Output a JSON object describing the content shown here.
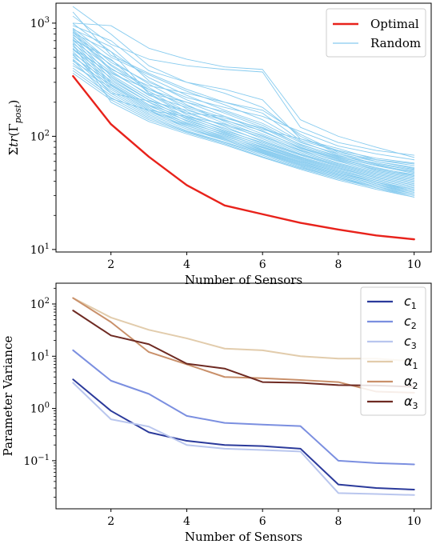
{
  "chart_data": [
    {
      "type": "line",
      "ylabel_parts": [
        "Σ",
        "tr",
        "(Γ",
        "post",
        ")"
      ],
      "xlabel": "Number of Sensors",
      "x": [
        1,
        2,
        3,
        4,
        5,
        6,
        7,
        8,
        9,
        10
      ],
      "yscale": "log",
      "ylim": [
        9.5,
        1500
      ],
      "xlim": [
        0.55,
        10.45
      ],
      "xticks": [
        "2",
        "4",
        "6",
        "8",
        "10"
      ],
      "yticks": [
        {
          "base": "10",
          "exp": "1",
          "value": 10
        },
        {
          "base": "10",
          "exp": "2",
          "value": 100
        },
        {
          "base": "10",
          "exp": "3",
          "value": 1000
        }
      ],
      "legend": {
        "position": "upper right",
        "entries": [
          {
            "label": "Optimal",
            "color": "#e8221b"
          },
          {
            "label": "Random",
            "color": "#87cbef"
          }
        ]
      },
      "series": [
        {
          "name": "Optimal",
          "color": "#e8221b",
          "values": [
            340,
            128,
            66,
            37,
            24.5,
            20.5,
            17.2,
            15,
            13.3,
            12.3
          ]
        },
        {
          "name": "Random",
          "color": "#87cbef",
          "values": [
            1400,
            800,
            420,
            300,
            260,
            210,
            95,
            78,
            62,
            55
          ]
        },
        {
          "name": "Random",
          "color": "#87cbef",
          "values": [
            1150,
            650,
            480,
            420,
            390,
            370,
            120,
            88,
            75,
            68
          ]
        },
        {
          "name": "Random",
          "color": "#87cbef",
          "values": [
            1000,
            950,
            600,
            480,
            410,
            390,
            140,
            100,
            80,
            65
          ]
        },
        {
          "name": "Random",
          "color": "#87cbef",
          "values": [
            950,
            700,
            380,
            300,
            240,
            180,
            100,
            70,
            60,
            52
          ]
        },
        {
          "name": "Random",
          "color": "#87cbef",
          "values": [
            900,
            500,
            350,
            250,
            190,
            140,
            90,
            68,
            56,
            48
          ]
        },
        {
          "name": "Random",
          "color": "#87cbef",
          "values": [
            880,
            620,
            310,
            210,
            160,
            120,
            85,
            66,
            55,
            47
          ]
        },
        {
          "name": "Random",
          "color": "#87cbef",
          "values": [
            850,
            420,
            260,
            200,
            150,
            110,
            80,
            64,
            53,
            45
          ]
        },
        {
          "name": "Random",
          "color": "#87cbef",
          "values": [
            820,
            560,
            330,
            230,
            170,
            130,
            88,
            70,
            57,
            50
          ]
        },
        {
          "name": "Random",
          "color": "#87cbef",
          "values": [
            800,
            380,
            230,
            180,
            140,
            105,
            78,
            62,
            50,
            44
          ]
        },
        {
          "name": "Random",
          "color": "#87cbef",
          "values": [
            780,
            470,
            290,
            190,
            135,
            100,
            76,
            60,
            49,
            43
          ]
        },
        {
          "name": "Random",
          "color": "#87cbef",
          "values": [
            760,
            340,
            210,
            160,
            125,
            98,
            74,
            58,
            48,
            42
          ]
        },
        {
          "name": "Random",
          "color": "#87cbef",
          "values": [
            740,
            430,
            270,
            175,
            130,
            95,
            72,
            57,
            47,
            41
          ]
        },
        {
          "name": "Random",
          "color": "#87cbef",
          "values": [
            720,
            320,
            200,
            150,
            118,
            92,
            70,
            56,
            46,
            40
          ]
        },
        {
          "name": "Random",
          "color": "#87cbef",
          "values": [
            700,
            400,
            250,
            165,
            122,
            90,
            69,
            55,
            45,
            39
          ]
        },
        {
          "name": "Random",
          "color": "#87cbef",
          "values": [
            680,
            300,
            190,
            145,
            112,
            88,
            68,
            54,
            44,
            38
          ]
        },
        {
          "name": "Random",
          "color": "#87cbef",
          "values": [
            660,
            370,
            235,
            155,
            115,
            86,
            66,
            53,
            43,
            37
          ]
        },
        {
          "name": "Random",
          "color": "#87cbef",
          "values": [
            640,
            290,
            185,
            138,
            108,
            84,
            65,
            52,
            43,
            37
          ]
        },
        {
          "name": "Random",
          "color": "#87cbef",
          "values": [
            620,
            350,
            220,
            148,
            110,
            83,
            64,
            51,
            42,
            36
          ]
        },
        {
          "name": "Random",
          "color": "#87cbef",
          "values": [
            600,
            280,
            175,
            132,
            104,
            81,
            63,
            50,
            41,
            35
          ]
        },
        {
          "name": "Random",
          "color": "#87cbef",
          "values": [
            580,
            330,
            210,
            142,
            106,
            80,
            62,
            49,
            41,
            35
          ]
        },
        {
          "name": "Random",
          "color": "#87cbef",
          "values": [
            560,
            270,
            170,
            128,
            100,
            79,
            61,
            48,
            40,
            34
          ]
        },
        {
          "name": "Random",
          "color": "#87cbef",
          "values": [
            540,
            310,
            200,
            136,
            102,
            77,
            60,
            48,
            39,
            34
          ]
        },
        {
          "name": "Random",
          "color": "#87cbef",
          "values": [
            520,
            260,
            165,
            124,
            97,
            76,
            59,
            47,
            39,
            33
          ]
        },
        {
          "name": "Random",
          "color": "#87cbef",
          "values": [
            500,
            300,
            190,
            130,
            98,
            75,
            58,
            46,
            38,
            33
          ]
        },
        {
          "name": "Random",
          "color": "#87cbef",
          "values": [
            480,
            250,
            160,
            120,
            94,
            74,
            57,
            46,
            38,
            32
          ]
        },
        {
          "name": "Random",
          "color": "#87cbef",
          "values": [
            460,
            285,
            180,
            125,
            95,
            73,
            56,
            45,
            37,
            32
          ]
        },
        {
          "name": "Random",
          "color": "#87cbef",
          "values": [
            440,
            240,
            155,
            116,
            92,
            72,
            56,
            45,
            37,
            31
          ]
        },
        {
          "name": "Random",
          "color": "#87cbef",
          "values": [
            420,
            270,
            170,
            120,
            92,
            71,
            55,
            44,
            36,
            31
          ]
        },
        {
          "name": "Random",
          "color": "#87cbef",
          "values": [
            400,
            230,
            150,
            112,
            89,
            70,
            54,
            43,
            36,
            30
          ]
        },
        {
          "name": "Random",
          "color": "#87cbef",
          "values": [
            380,
            220,
            145,
            110,
            88,
            68,
            53,
            43,
            35,
            30
          ]
        },
        {
          "name": "Random",
          "color": "#87cbef",
          "values": [
            360,
            210,
            140,
            108,
            86,
            66,
            52,
            42,
            35,
            29
          ]
        },
        {
          "name": "Random",
          "color": "#87cbef",
          "values": [
            650,
            200,
            135,
            105,
            84,
            65,
            51,
            41,
            34,
            29
          ]
        },
        {
          "name": "Random",
          "color": "#87cbef",
          "values": [
            990,
            560,
            240,
            160,
            150,
            115,
            95,
            75,
            64,
            58
          ]
        },
        {
          "name": "Random",
          "color": "#87cbef",
          "values": [
            870,
            450,
            300,
            220,
            180,
            150,
            110,
            82,
            70,
            62
          ]
        },
        {
          "name": "Random",
          "color": "#87cbef",
          "values": [
            1250,
            520,
            360,
            260,
            200,
            160,
            92,
            74,
            60,
            53
          ]
        },
        {
          "name": "Random",
          "color": "#87cbef",
          "values": [
            710,
            480,
            240,
            200,
            165,
            125,
            84,
            67,
            58,
            51
          ]
        },
        {
          "name": "Random",
          "color": "#87cbef",
          "values": [
            590,
            360,
            260,
            185,
            145,
            118,
            82,
            65,
            55,
            49
          ]
        },
        {
          "name": "Random",
          "color": "#87cbef",
          "values": [
            530,
            240,
            205,
            170,
            138,
            112,
            79,
            63,
            52,
            46
          ]
        },
        {
          "name": "Random",
          "color": "#87cbef",
          "values": [
            470,
            215,
            170,
            150,
            128,
            102,
            75,
            61,
            51,
            45
          ]
        },
        {
          "name": "Random",
          "color": "#87cbef",
          "values": [
            830,
            390,
            280,
            240,
            200,
            170,
            104,
            72,
            62,
            57
          ]
        }
      ]
    },
    {
      "type": "line",
      "ylabel": "Parameter Variance",
      "xlabel": "Number of Sensors",
      "x": [
        1,
        2,
        3,
        4,
        5,
        6,
        7,
        8,
        9,
        10
      ],
      "yscale": "log",
      "ylim": [
        0.012,
        250
      ],
      "xlim": [
        0.55,
        10.45
      ],
      "xticks": [
        "2",
        "4",
        "6",
        "8",
        "10"
      ],
      "yticks": [
        {
          "base": "10",
          "exp": "−1",
          "value": 0.1
        },
        {
          "base": "10",
          "exp": "0",
          "value": 1
        },
        {
          "base": "10",
          "exp": "1",
          "value": 10
        },
        {
          "base": "10",
          "exp": "2",
          "value": 100
        }
      ],
      "legend": {
        "position": "upper right"
      },
      "series": [
        {
          "sym": "c",
          "sub": "1",
          "color": "#2b3a9b",
          "values": [
            3.6,
            0.9,
            0.35,
            0.24,
            0.2,
            0.19,
            0.17,
            0.035,
            0.03,
            0.028
          ]
        },
        {
          "sym": "c",
          "sub": "2",
          "color": "#7b8fe0",
          "values": [
            13,
            3.4,
            1.9,
            0.72,
            0.53,
            0.49,
            0.46,
            0.1,
            0.09,
            0.085
          ]
        },
        {
          "sym": "c",
          "sub": "3",
          "color": "#b9c6ee",
          "values": [
            3.1,
            0.62,
            0.45,
            0.2,
            0.17,
            0.16,
            0.15,
            0.024,
            0.023,
            0.022
          ]
        },
        {
          "sym": "α",
          "sub": "1",
          "color": "#e2ccac",
          "values": [
            130,
            55,
            32,
            22,
            14,
            13,
            10,
            9,
            9,
            8
          ]
        },
        {
          "sym": "α",
          "sub": "2",
          "color": "#c9906a",
          "values": [
            130,
            45,
            12,
            7,
            4.0,
            3.8,
            3.5,
            3.2,
            2.1,
            2.0
          ]
        },
        {
          "sym": "α",
          "sub": "3",
          "color": "#6e2a22",
          "values": [
            75,
            25,
            17,
            7.2,
            5.8,
            3.2,
            3.1,
            2.8,
            2.75,
            2.6
          ]
        }
      ]
    }
  ]
}
